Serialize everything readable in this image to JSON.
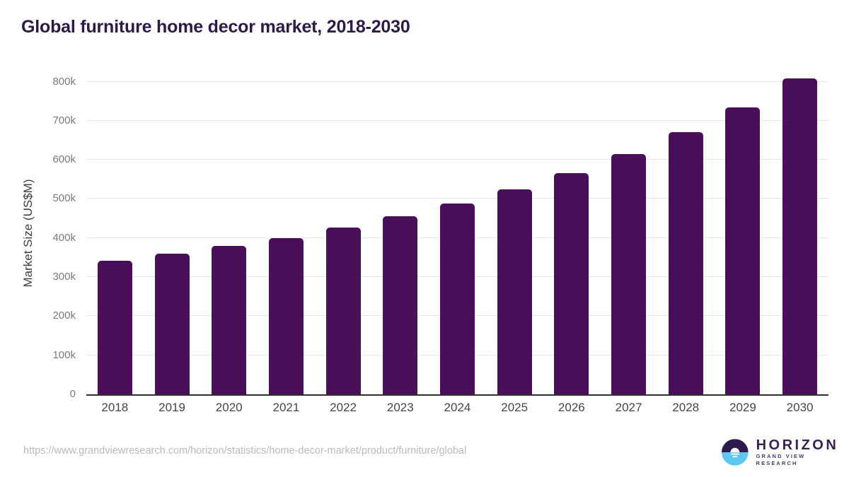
{
  "title": "Global furniture home decor market, 2018-2030",
  "chart_data": {
    "type": "bar",
    "title": "Global furniture home decor market, 2018-2030",
    "categories": [
      "2018",
      "2019",
      "2020",
      "2021",
      "2022",
      "2023",
      "2024",
      "2025",
      "2026",
      "2027",
      "2028",
      "2029",
      "2030"
    ],
    "values": [
      342000,
      360000,
      379000,
      399000,
      426000,
      455000,
      488000,
      525000,
      566000,
      614000,
      670000,
      734000,
      808000
    ],
    "xlabel": "",
    "ylabel": "Market Size (US$M)",
    "ylim": [
      0,
      800000
    ],
    "ytick_values": [
      0,
      100000,
      200000,
      300000,
      400000,
      500000,
      600000,
      700000,
      800000
    ],
    "ytick_labels": [
      "0",
      "100k",
      "200k",
      "300k",
      "400k",
      "500k",
      "600k",
      "700k",
      "800k"
    ],
    "grid": true,
    "legend_position": "none",
    "bar_color": "#491059"
  },
  "footer": {
    "source_url": "https://www.grandviewresearch.com/horizon/statistics/home-decor-market/product/furniture/global",
    "logo": {
      "name": "HORIZON",
      "subtitle": "GRAND VIEW RESEARCH"
    }
  },
  "colors": {
    "title_text": "#2e1a47",
    "bar": "#491059",
    "gridline": "#e7e7e7",
    "axis_line": "#2e2e2e",
    "ytick_text": "#7a7a7a",
    "xtick_text": "#464646",
    "url_text": "#b9b9b9",
    "logo_dark_purple": "#2d1b4e",
    "logo_light_blue": "#5cc7f1"
  }
}
